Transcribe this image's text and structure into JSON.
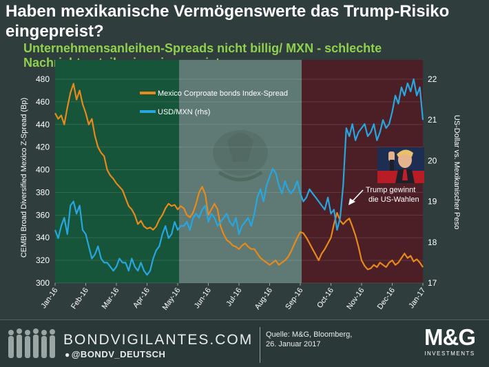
{
  "header": {
    "title": "Haben mexikanische Vermögenswerte das Trump-Risiko eingepreist?",
    "subtitle": "Unternehmensanleihen-Spreads nicht billig/ MXN - schlechte Nachrichten teilweise eingepreist"
  },
  "chart_data": {
    "type": "line",
    "categories": [
      "Jan-16",
      "Feb-16",
      "Mar-16",
      "Apr-16",
      "May-16",
      "Jun-16",
      "Jul-16",
      "Aug-16",
      "Sep-16",
      "Oct-16",
      "Nov-16",
      "Dec-16",
      "Jan-17"
    ],
    "ylabel": "CEMBI Broad Diversified Mexico Z-Spread (Bp)",
    "y2label": "US-Dollar vs. Mexikanischer Peso",
    "ylim": [
      300,
      480
    ],
    "y2lim": [
      17,
      22
    ],
    "yticks": [
      300,
      320,
      340,
      360,
      380,
      400,
      420,
      440,
      460,
      480
    ],
    "y2ticks": [
      17,
      18,
      19,
      20,
      21,
      22
    ],
    "series": [
      {
        "name": "Mexico Corproate bonds Index-Spread",
        "axis": "left",
        "color": "#e8891c",
        "x": [
          0,
          0.1,
          0.2,
          0.3,
          0.4,
          0.5,
          0.6,
          0.7,
          0.8,
          0.9,
          1.0,
          1.1,
          1.2,
          1.3,
          1.4,
          1.5,
          1.6,
          1.7,
          1.8,
          1.9,
          2.0,
          2.1,
          2.2,
          2.3,
          2.4,
          2.5,
          2.6,
          2.7,
          2.8,
          2.9,
          3.0,
          3.1,
          3.2,
          3.3,
          3.4,
          3.5,
          3.6,
          3.7,
          3.8,
          3.9,
          4.0,
          4.1,
          4.2,
          4.3,
          4.4,
          4.5,
          4.6,
          4.7,
          4.8,
          4.9,
          5.0,
          5.1,
          5.2,
          5.3,
          5.4,
          5.5,
          5.6,
          5.7,
          5.8,
          5.9,
          6.0,
          6.1,
          6.2,
          6.3,
          6.4,
          6.5,
          6.6,
          6.7,
          6.8,
          6.9,
          7.0,
          7.1,
          7.2,
          7.3,
          7.4,
          7.5,
          7.6,
          7.7,
          7.8,
          7.9,
          8.0,
          8.1,
          8.2,
          8.3,
          8.4,
          8.5,
          8.6,
          8.7,
          8.8,
          8.9,
          9.0,
          9.1,
          9.2,
          9.3,
          9.4,
          9.5,
          9.6,
          9.7,
          9.8,
          9.9,
          10.0,
          10.1,
          10.2,
          10.3,
          10.4,
          10.5,
          10.6,
          10.7,
          10.8,
          10.9,
          11.0,
          11.1,
          11.2,
          11.3,
          11.4,
          11.5,
          11.6,
          11.7,
          11.8,
          11.9,
          12.0
        ],
        "values": [
          450,
          445,
          448,
          440,
          455,
          468,
          476,
          462,
          470,
          458,
          450,
          440,
          445,
          430,
          420,
          415,
          412,
          400,
          395,
          392,
          388,
          385,
          382,
          375,
          368,
          365,
          360,
          352,
          355,
          350,
          348,
          349,
          347,
          350,
          356,
          360,
          366,
          370,
          368,
          369,
          365,
          368,
          366,
          360,
          358,
          362,
          370,
          380,
          385,
          378,
          360,
          365,
          370,
          365,
          350,
          343,
          338,
          336,
          333,
          332,
          330,
          333,
          335,
          332,
          330,
          330,
          326,
          322,
          320,
          318,
          316,
          318,
          320,
          316,
          318,
          320,
          323,
          328,
          334,
          340,
          345,
          344,
          340,
          335,
          330,
          325,
          320,
          326,
          330,
          335,
          340,
          352,
          362,
          355,
          352,
          355,
          357,
          350,
          342,
          332,
          320,
          315,
          312,
          313,
          316,
          314,
          318,
          316,
          314,
          318,
          320,
          316,
          318,
          322,
          326,
          322,
          324,
          319,
          321,
          318,
          314
        ]
      },
      {
        "name": "USD/MXN (rhs)",
        "axis": "right",
        "color": "#27a7e0",
        "x": [
          0,
          0.1,
          0.2,
          0.3,
          0.4,
          0.5,
          0.6,
          0.7,
          0.8,
          0.9,
          1.0,
          1.1,
          1.2,
          1.3,
          1.4,
          1.5,
          1.6,
          1.7,
          1.8,
          1.9,
          2.0,
          2.1,
          2.2,
          2.3,
          2.4,
          2.5,
          2.6,
          2.7,
          2.8,
          2.9,
          3.0,
          3.1,
          3.2,
          3.3,
          3.4,
          3.5,
          3.6,
          3.7,
          3.8,
          3.9,
          4.0,
          4.1,
          4.2,
          4.3,
          4.4,
          4.5,
          4.6,
          4.7,
          4.8,
          4.9,
          5.0,
          5.1,
          5.2,
          5.3,
          5.4,
          5.5,
          5.6,
          5.7,
          5.8,
          5.9,
          6.0,
          6.1,
          6.2,
          6.3,
          6.4,
          6.5,
          6.6,
          6.7,
          6.8,
          6.9,
          7.0,
          7.1,
          7.2,
          7.3,
          7.4,
          7.5,
          7.6,
          7.7,
          7.8,
          7.9,
          8.0,
          8.1,
          8.2,
          8.3,
          8.4,
          8.5,
          8.6,
          8.7,
          8.8,
          8.9,
          9.0,
          9.1,
          9.2,
          9.3,
          9.4,
          9.5,
          9.6,
          9.7,
          9.8,
          9.9,
          10.0,
          10.1,
          10.2,
          10.3,
          10.4,
          10.5,
          10.6,
          10.7,
          10.8,
          10.9,
          11.0,
          11.1,
          11.2,
          11.3,
          11.4,
          11.5,
          11.6,
          11.7,
          11.8,
          11.9,
          12.0
        ],
        "values": [
          18.3,
          18.1,
          18.4,
          18.6,
          18.2,
          18.9,
          19.0,
          18.7,
          18.9,
          18.3,
          18.2,
          17.9,
          17.6,
          17.7,
          17.9,
          17.6,
          17.5,
          17.5,
          17.4,
          17.3,
          17.4,
          17.6,
          17.5,
          17.5,
          17.3,
          17.6,
          17.4,
          17.3,
          17.5,
          17.3,
          17.2,
          17.3,
          17.6,
          17.8,
          17.9,
          18.2,
          18.4,
          18.1,
          18.2,
          18.5,
          18.3,
          18.4,
          18.4,
          18.5,
          18.3,
          18.6,
          18.7,
          18.6,
          18.8,
          18.9,
          18.5,
          18.7,
          18.6,
          18.4,
          18.5,
          18.6,
          18.7,
          18.5,
          18.4,
          18.6,
          18.2,
          18.4,
          18.5,
          18.6,
          18.4,
          18.7,
          19.1,
          19.3,
          19.0,
          19.4,
          19.6,
          19.8,
          19.7,
          19.4,
          19.2,
          19.5,
          19.3,
          19.2,
          19.3,
          19.5,
          19.2,
          19.0,
          19.1,
          19.3,
          19.2,
          19.1,
          19.0,
          18.9,
          18.8,
          19.1,
          18.7,
          18.8,
          18.3,
          18.6,
          19.4,
          20.8,
          20.6,
          20.9,
          20.5,
          20.7,
          20.8,
          20.9,
          20.6,
          20.7,
          20.9,
          20.5,
          20.7,
          21.0,
          20.8,
          20.9,
          21.2,
          21.6,
          21.4,
          21.8,
          21.6,
          21.9,
          21.7,
          22.0,
          21.6,
          21.8,
          21.0
        ]
      }
    ],
    "annotation": {
      "text_line1": "Trump gewinnt",
      "text_line2": "die US-Wahlen",
      "x": 10.25,
      "series": "USD/MXN (rhs)"
    }
  },
  "background": {
    "green": "#16553a",
    "white": "#5f7a74",
    "red": "#4c1f26"
  },
  "footer": {
    "brand": "BONDVIGILANTES.COM",
    "handle": "@BONDV_DEUTSCH",
    "source_line1": "Quelle: M&G, Bloomberg,",
    "source_line2": "26. Januar 2017",
    "logo_main": "M&G",
    "logo_sub": "INVESTMENTS"
  }
}
